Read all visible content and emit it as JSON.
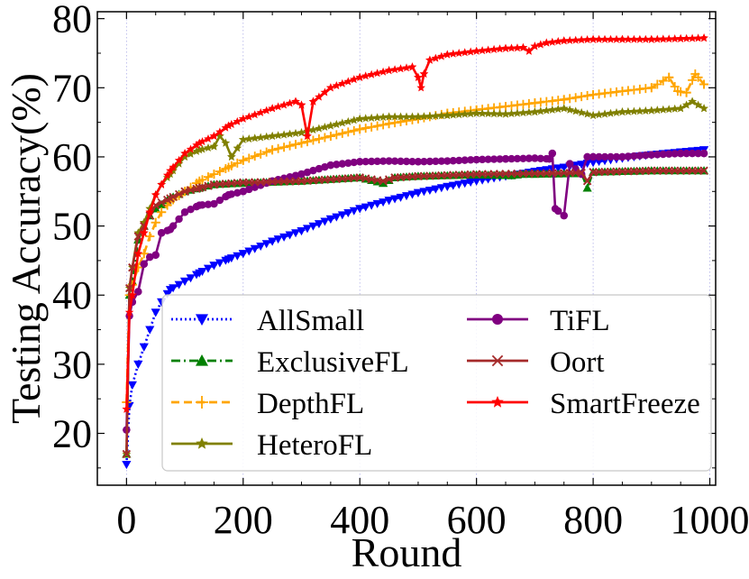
{
  "chart_data": {
    "type": "line",
    "title": "",
    "xlabel": "Round",
    "ylabel": "Testing Accuracy(%)",
    "xlim": [
      -50,
      1010
    ],
    "ylim": [
      12.5,
      81
    ],
    "xticks": [
      0,
      200,
      400,
      600,
      800,
      1000
    ],
    "yticks": [
      20,
      30,
      40,
      50,
      60,
      70,
      80
    ],
    "grid": "vertical-dotted",
    "legend_position": "lower-right",
    "series": [
      {
        "name": "AllSmall",
        "color": "#0000ff",
        "linestyle": "dotted",
        "marker": "triangle-down",
        "points": [
          [
            0,
            15.5
          ],
          [
            5,
            24
          ],
          [
            10,
            27
          ],
          [
            20,
            30
          ],
          [
            30,
            32.5
          ],
          [
            40,
            35
          ],
          [
            50,
            37.5
          ],
          [
            60,
            39
          ],
          [
            75,
            40.8
          ],
          [
            100,
            42
          ],
          [
            125,
            43.2
          ],
          [
            150,
            44.3
          ],
          [
            175,
            45.2
          ],
          [
            200,
            46
          ],
          [
            250,
            47.8
          ],
          [
            300,
            49.3
          ],
          [
            350,
            51
          ],
          [
            400,
            52.5
          ],
          [
            450,
            53.7
          ],
          [
            500,
            54.8
          ],
          [
            550,
            55.7
          ],
          [
            600,
            56.5
          ],
          [
            650,
            57.2
          ],
          [
            700,
            57.9
          ],
          [
            750,
            58.5
          ],
          [
            800,
            59.2
          ],
          [
            850,
            59.8
          ],
          [
            900,
            60.3
          ],
          [
            950,
            60.7
          ],
          [
            990,
            61
          ]
        ]
      },
      {
        "name": "ExclusiveFL",
        "color": "#008000",
        "linestyle": "dashdot",
        "marker": "triangle-up",
        "points": [
          [
            0,
            17
          ],
          [
            5,
            40
          ],
          [
            10,
            42
          ],
          [
            20,
            48
          ],
          [
            30,
            50
          ],
          [
            40,
            51.5
          ],
          [
            50,
            52.5
          ],
          [
            75,
            54
          ],
          [
            100,
            55
          ],
          [
            125,
            55.5
          ],
          [
            150,
            56
          ],
          [
            200,
            56.2
          ],
          [
            300,
            56.5
          ],
          [
            400,
            57
          ],
          [
            440,
            56.2
          ],
          [
            460,
            57
          ],
          [
            500,
            57.2
          ],
          [
            600,
            57.4
          ],
          [
            660,
            57.3
          ],
          [
            680,
            57.5
          ],
          [
            700,
            57.5
          ],
          [
            780,
            57.6
          ],
          [
            790,
            55.5
          ],
          [
            800,
            57.8
          ],
          [
            900,
            58
          ],
          [
            990,
            58
          ]
        ]
      },
      {
        "name": "DepthFL",
        "color": "#ffa500",
        "linestyle": "dashed",
        "marker": "plus",
        "points": [
          [
            0,
            24.5
          ],
          [
            5,
            40
          ],
          [
            10,
            41.5
          ],
          [
            20,
            44
          ],
          [
            30,
            46
          ],
          [
            40,
            48.5
          ],
          [
            50,
            50.5
          ],
          [
            60,
            52
          ],
          [
            75,
            53.5
          ],
          [
            100,
            55
          ],
          [
            125,
            56.5
          ],
          [
            150,
            57.5
          ],
          [
            175,
            58.5
          ],
          [
            200,
            59.5
          ],
          [
            250,
            61
          ],
          [
            300,
            62
          ],
          [
            350,
            63
          ],
          [
            400,
            64
          ],
          [
            450,
            64.8
          ],
          [
            500,
            65.5
          ],
          [
            550,
            66.3
          ],
          [
            600,
            66.8
          ],
          [
            650,
            67.3
          ],
          [
            700,
            67.8
          ],
          [
            750,
            68.3
          ],
          [
            800,
            69
          ],
          [
            850,
            69.5
          ],
          [
            900,
            70
          ],
          [
            930,
            71.5
          ],
          [
            945,
            69.5
          ],
          [
            960,
            69.3
          ],
          [
            975,
            72
          ],
          [
            990,
            70.5
          ]
        ]
      },
      {
        "name": "HeteroFL",
        "color": "#808000",
        "linestyle": "solid",
        "marker": "star",
        "points": [
          [
            0,
            17
          ],
          [
            5,
            41
          ],
          [
            10,
            44
          ],
          [
            20,
            49
          ],
          [
            30,
            50.5
          ],
          [
            40,
            52.5
          ],
          [
            50,
            54.5
          ],
          [
            60,
            56
          ],
          [
            75,
            57.5
          ],
          [
            100,
            60
          ],
          [
            125,
            61
          ],
          [
            150,
            61.5
          ],
          [
            160,
            63
          ],
          [
            170,
            62
          ],
          [
            180,
            60
          ],
          [
            200,
            62.5
          ],
          [
            250,
            63
          ],
          [
            300,
            63.5
          ],
          [
            350,
            64.5
          ],
          [
            400,
            65.5
          ],
          [
            450,
            65.8
          ],
          [
            500,
            65.8
          ],
          [
            550,
            66
          ],
          [
            600,
            66.3
          ],
          [
            650,
            66.2
          ],
          [
            700,
            66.5
          ],
          [
            750,
            67
          ],
          [
            800,
            66
          ],
          [
            850,
            66.5
          ],
          [
            900,
            66.7
          ],
          [
            950,
            67
          ],
          [
            970,
            68
          ],
          [
            990,
            67
          ]
        ]
      },
      {
        "name": "TiFL",
        "color": "#800080",
        "linestyle": "solid",
        "marker": "circle",
        "points": [
          [
            0,
            20.5
          ],
          [
            5,
            37
          ],
          [
            10,
            39
          ],
          [
            20,
            40.5
          ],
          [
            30,
            44.5
          ],
          [
            40,
            45.5
          ],
          [
            50,
            45.8
          ],
          [
            60,
            49
          ],
          [
            75,
            49.5
          ],
          [
            100,
            52
          ],
          [
            125,
            53
          ],
          [
            150,
            53.2
          ],
          [
            175,
            54.5
          ],
          [
            200,
            55
          ],
          [
            250,
            56.5
          ],
          [
            300,
            57.5
          ],
          [
            350,
            58.8
          ],
          [
            400,
            59.3
          ],
          [
            450,
            59.4
          ],
          [
            500,
            59.3
          ],
          [
            550,
            59.4
          ],
          [
            600,
            59.6
          ],
          [
            650,
            59.7
          ],
          [
            700,
            59.8
          ],
          [
            725,
            59.7
          ],
          [
            730,
            60.5
          ],
          [
            735,
            52.5
          ],
          [
            750,
            51.5
          ],
          [
            760,
            59
          ],
          [
            780,
            57.5
          ],
          [
            790,
            60
          ],
          [
            800,
            60
          ],
          [
            850,
            60
          ],
          [
            900,
            60.3
          ],
          [
            950,
            60.5
          ],
          [
            990,
            60.5
          ]
        ]
      },
      {
        "name": "Oort",
        "color": "#a52a2a",
        "linestyle": "solid",
        "marker": "x",
        "points": [
          [
            0,
            17
          ],
          [
            5,
            41
          ],
          [
            10,
            44
          ],
          [
            20,
            48.5
          ],
          [
            30,
            50
          ],
          [
            40,
            51.5
          ],
          [
            50,
            53
          ],
          [
            75,
            54
          ],
          [
            100,
            55
          ],
          [
            125,
            55.5
          ],
          [
            150,
            56
          ],
          [
            200,
            56.3
          ],
          [
            300,
            56.5
          ],
          [
            400,
            57
          ],
          [
            440,
            56.5
          ],
          [
            460,
            57
          ],
          [
            500,
            57.2
          ],
          [
            600,
            57.5
          ],
          [
            700,
            57.6
          ],
          [
            780,
            57.7
          ],
          [
            790,
            56.5
          ],
          [
            800,
            57.8
          ],
          [
            900,
            58
          ],
          [
            990,
            58
          ]
        ]
      },
      {
        "name": "SmartFreeze",
        "color": "#ff0000",
        "linestyle": "solid",
        "marker": "star",
        "points": [
          [
            0,
            23.5
          ],
          [
            5,
            37.5
          ],
          [
            10,
            40
          ],
          [
            20,
            46
          ],
          [
            30,
            49
          ],
          [
            40,
            52
          ],
          [
            50,
            54.5
          ],
          [
            60,
            56
          ],
          [
            75,
            58
          ],
          [
            100,
            60.5
          ],
          [
            125,
            62
          ],
          [
            150,
            63
          ],
          [
            175,
            64.5
          ],
          [
            200,
            65.5
          ],
          [
            250,
            67
          ],
          [
            290,
            68
          ],
          [
            300,
            67.5
          ],
          [
            310,
            63
          ],
          [
            320,
            68
          ],
          [
            350,
            70
          ],
          [
            400,
            71.5
          ],
          [
            450,
            72.5
          ],
          [
            490,
            73
          ],
          [
            500,
            71.5
          ],
          [
            505,
            70
          ],
          [
            510,
            72
          ],
          [
            520,
            74
          ],
          [
            550,
            74.8
          ],
          [
            600,
            75.3
          ],
          [
            650,
            75.7
          ],
          [
            680,
            75.8
          ],
          [
            690,
            75.3
          ],
          [
            700,
            76
          ],
          [
            720,
            76.5
          ],
          [
            750,
            76.8
          ],
          [
            800,
            77
          ],
          [
            850,
            77
          ],
          [
            900,
            77
          ],
          [
            950,
            77.1
          ],
          [
            990,
            77.2
          ]
        ]
      }
    ]
  }
}
